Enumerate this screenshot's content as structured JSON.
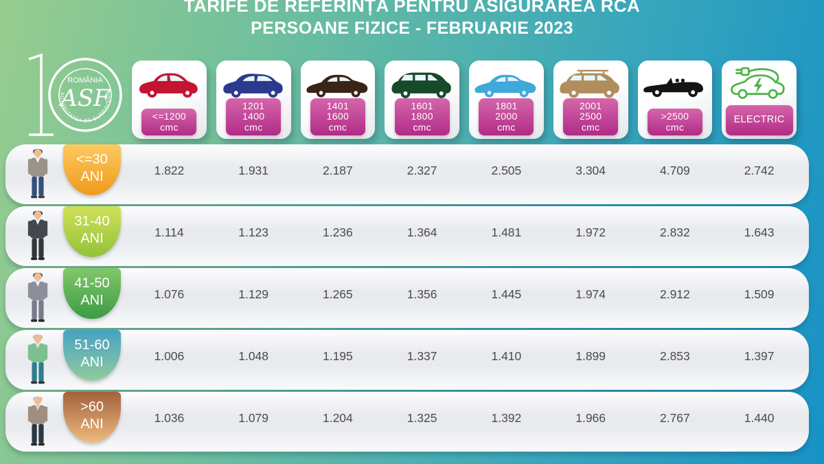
{
  "title": {
    "line1": "TARIFE DE REFERINȚA PENTRU ASIGURAREA RCA",
    "line2": "PERSOANE FIZICE - FEBRUARIE 2023"
  },
  "logo": {
    "anniversary_number": "10",
    "country": "ROMÂNIA",
    "acronym": "ASF",
    "ring_text": "AUTORITATEA DE SUPRAVEGHERE FINANCIARĂ"
  },
  "category_badge_colors": {
    "top": "#d466aa",
    "bottom": "#b12b87"
  },
  "columns": [
    {
      "id": "lte-1200",
      "label_lines": [
        "<=1200",
        "cmc"
      ],
      "icon": "hatchback-car-icon",
      "color": "#c31432"
    },
    {
      "id": "1201-1400",
      "label_lines": [
        "1201",
        "1400",
        "cmc"
      ],
      "icon": "compact-suv-car-icon",
      "color": "#2b3a8f"
    },
    {
      "id": "1401-1600",
      "label_lines": [
        "1401",
        "1600",
        "cmc"
      ],
      "icon": "sedan-car-icon",
      "color": "#3a2417"
    },
    {
      "id": "1601-1800",
      "label_lines": [
        "1601",
        "1800",
        "cmc"
      ],
      "icon": "minivan-car-icon",
      "color": "#174a28"
    },
    {
      "id": "1801-2000",
      "label_lines": [
        "1801",
        "2000",
        "cmc"
      ],
      "icon": "sedan-car-icon",
      "color": "#3fa9dc"
    },
    {
      "id": "2001-2500",
      "label_lines": [
        "2001",
        "2500",
        "cmc"
      ],
      "icon": "suv-roofrack-car-icon",
      "color": "#b08d5c"
    },
    {
      "id": "gt-2500",
      "label_lines": [
        ">2500",
        "cmc"
      ],
      "icon": "convertible-car-icon",
      "color": "#141414"
    },
    {
      "id": "electric",
      "label_lines": [
        "ELECTRIC"
      ],
      "icon": "electric-car-icon",
      "color": "#4db348"
    }
  ],
  "rows": [
    {
      "age_lines": [
        "<=30",
        "ANI"
      ],
      "badge_top": "#fcca60",
      "badge_bottom": "#f0991c",
      "person": {
        "hair": "#6b4a2f",
        "jacket": "#9b9289",
        "shirt": "#f4f1ea",
        "pants": "#33517a",
        "shoes": "#3a3f45"
      },
      "values": [
        "1.822",
        "1.931",
        "2.187",
        "2.327",
        "2.505",
        "3.304",
        "4.709",
        "2.742"
      ]
    },
    {
      "age_lines": [
        "31-40",
        "ANI"
      ],
      "badge_top": "#cfe059",
      "badge_bottom": "#93c23a",
      "person": {
        "hair": "#3a2f28",
        "jacket": "#44474d",
        "shirt": "#e8edf2",
        "pants": "#33363b",
        "shoes": "#222222"
      },
      "values": [
        "1.114",
        "1.123",
        "1.236",
        "1.364",
        "1.481",
        "1.972",
        "2.832",
        "1.643"
      ]
    },
    {
      "age_lines": [
        "41-50",
        "ANI"
      ],
      "badge_top": "#82c76b",
      "badge_bottom": "#3b9b43",
      "person": {
        "hair": "#5a5048",
        "jacket": "#8b8f9b",
        "shirt": "#f2f2f2",
        "pants": "#787d8a",
        "shoes": "#2a2a2a"
      },
      "values": [
        "1.076",
        "1.129",
        "1.265",
        "1.356",
        "1.445",
        "1.974",
        "2.912",
        "1.509"
      ]
    },
    {
      "age_lines": [
        "51-60",
        "ANI"
      ],
      "badge_top": "#45a2c4",
      "badge_bottom": "#93cb9c",
      "person": {
        "hair": "#b7b2a6",
        "jacket": "#7cc091",
        "shirt": "#e6e1d6",
        "pants": "#2f7f8d",
        "shoes": "#2e3338"
      },
      "values": [
        "1.006",
        "1.048",
        "1.195",
        "1.337",
        "1.410",
        "1.899",
        "2.853",
        "1.397"
      ]
    },
    {
      "age_lines": [
        ">60",
        "ANI"
      ],
      "badge_top": "#a2613c",
      "badge_bottom": "#eebb7e",
      "person": {
        "hair": "#c9c4b9",
        "jacket": "#a08f81",
        "shirt": "#d9d3c9",
        "pants": "#2b3745",
        "shoes": "#26292e"
      },
      "values": [
        "1.036",
        "1.079",
        "1.204",
        "1.325",
        "1.392",
        "1.966",
        "2.767",
        "1.440"
      ]
    }
  ]
}
